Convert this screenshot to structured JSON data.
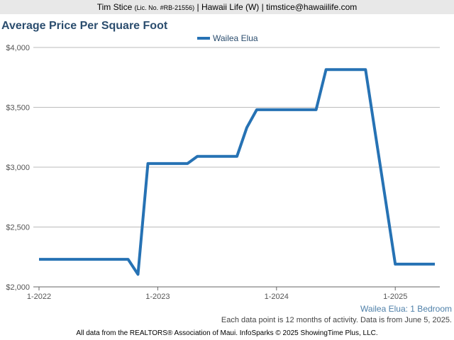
{
  "header": {
    "name": "Tim Stice",
    "license": "(Lic. No. #RB-21556)",
    "rest": "| Hawaii Life (W) | timstice@hawaiilife.com"
  },
  "chart_data": {
    "type": "line",
    "title": "Average Price Per Square Foot",
    "x": [
      "2022-01",
      "2022-02",
      "2022-03",
      "2022-04",
      "2022-05",
      "2022-06",
      "2022-07",
      "2022-08",
      "2022-09",
      "2022-10",
      "2022-11",
      "2022-12",
      "2023-01",
      "2023-02",
      "2023-03",
      "2023-04",
      "2023-05",
      "2023-06",
      "2023-07",
      "2023-08",
      "2023-09",
      "2023-10",
      "2023-11",
      "2023-12",
      "2024-01",
      "2024-02",
      "2024-03",
      "2024-04",
      "2024-05",
      "2024-06",
      "2024-07",
      "2024-08",
      "2024-09",
      "2024-10",
      "2024-11",
      "2024-12",
      "2025-01",
      "2025-02",
      "2025-03",
      "2025-04",
      "2025-05"
    ],
    "series": [
      {
        "name": "Wailea Elua",
        "color": "#2672b4",
        "values": [
          2230,
          2230,
          2230,
          2230,
          2230,
          2230,
          2230,
          2230,
          2230,
          2230,
          2105,
          3030,
          3030,
          3030,
          3030,
          3030,
          3090,
          3090,
          3090,
          3090,
          3090,
          3330,
          3480,
          3480,
          3480,
          3480,
          3480,
          3480,
          3480,
          3815,
          3815,
          3815,
          3815,
          3815,
          3273,
          2732,
          2190,
          2190,
          2190,
          2190,
          2190
        ]
      }
    ],
    "ylim": [
      2000,
      4000
    ],
    "yticks": [
      {
        "value": 2000,
        "label": "$2,000"
      },
      {
        "value": 2500,
        "label": "$2,500"
      },
      {
        "value": 3000,
        "label": "$3,000"
      },
      {
        "value": 3500,
        "label": "$3,500"
      },
      {
        "value": 4000,
        "label": "$4,000"
      }
    ],
    "xticks": [
      {
        "value": "2022-01",
        "label": "1-2022"
      },
      {
        "value": "2023-01",
        "label": "1-2023"
      },
      {
        "value": "2024-01",
        "label": "1-2024"
      },
      {
        "value": "2025-01",
        "label": "1-2025"
      }
    ],
    "grid": true,
    "subtitle": "Wailea Elua: 1 Bedroom",
    "note": "Each data point is 12 months of activity. Data is from June 5, 2025.",
    "source": "All data from the REALTORS® Association of Maui. InfoSparks © 2025 ShowingTime Plus, LLC."
  }
}
